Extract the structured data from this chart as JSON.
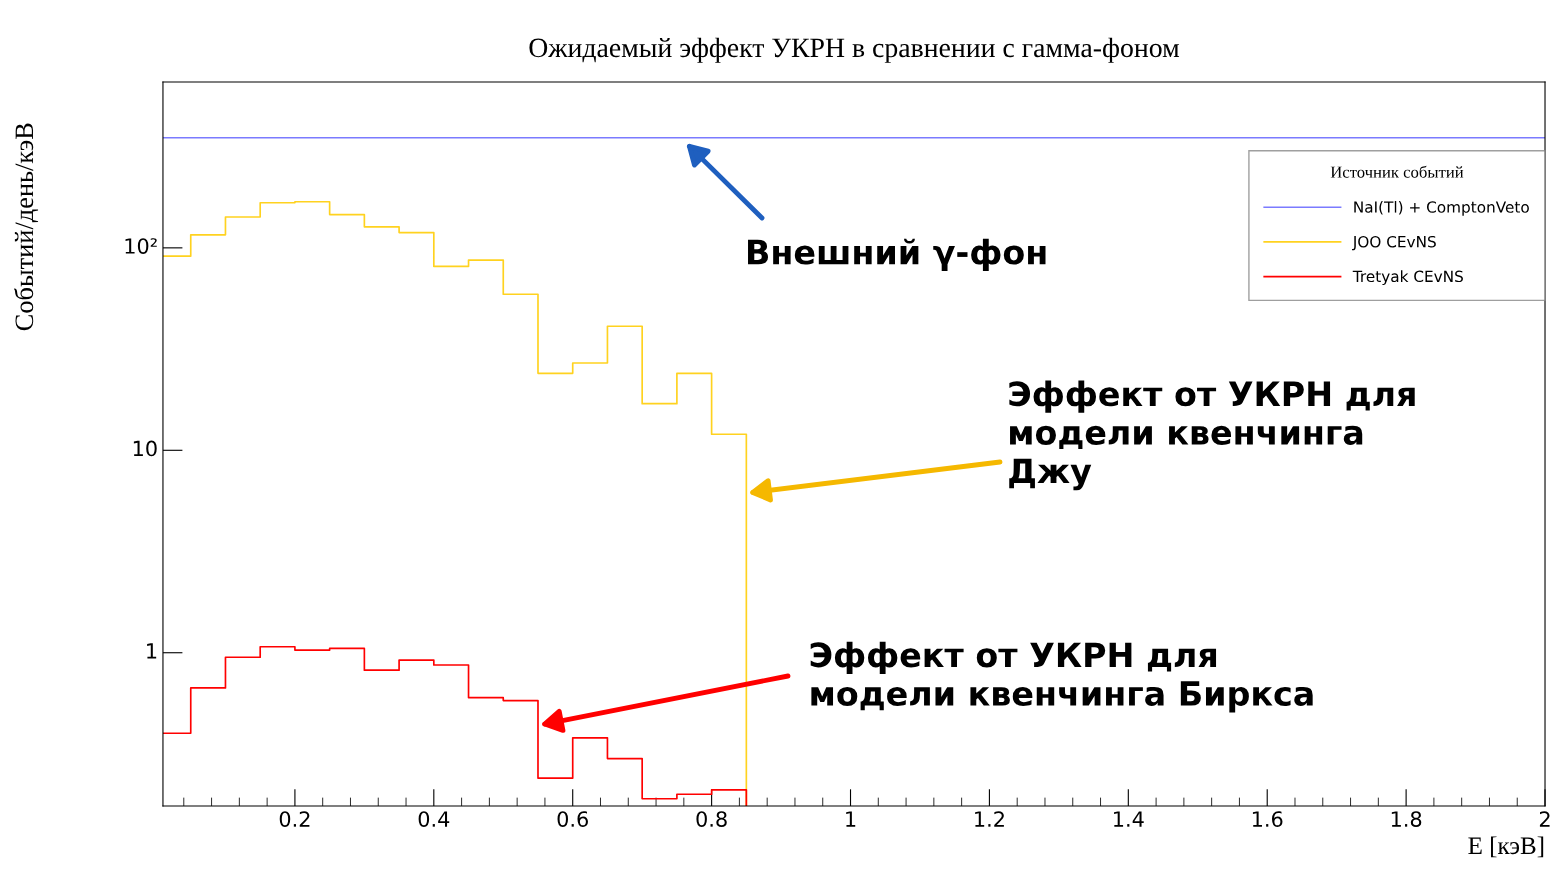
{
  "chart_data": {
    "type": "histogram",
    "title": "Ожидаемый эффект УКРН в сравнении с гамма-фоном",
    "xlabel": "E [кэВ]",
    "ylabel": "Событий/день/кэВ",
    "legend_title": "Источник событий",
    "bins": [
      0,
      0.05,
      0.1,
      0.15,
      0.2,
      0.25,
      0.3,
      0.35,
      0.4,
      0.45,
      0.5,
      0.55,
      0.6,
      0.65,
      0.7,
      0.75,
      0.8,
      0.85
    ],
    "series": [
      {
        "name": "JOO CEvNS",
        "color": "#ffd21f",
        "values": [
          91,
          116,
          142,
          167,
          169,
          146,
          127,
          119,
          81,
          87,
          59,
          24,
          27,
          41,
          17,
          24,
          12
        ]
      },
      {
        "name": "Tretyak CEvNS",
        "color": "#ff0000",
        "values": [
          0.4,
          0.67,
          0.95,
          1.07,
          1.03,
          1.05,
          0.82,
          0.92,
          0.87,
          0.6,
          0.58,
          0.24,
          0.38,
          0.3,
          0.19,
          0.2,
          0.21
        ]
      },
      {
        "name": "NaI(Tl) + ComptonVeto",
        "type": "line",
        "color": "#7b7bff",
        "x": [
          0.01,
          2
        ],
        "values": [
          350,
          350
        ]
      }
    ],
    "xlim": [
      0.01,
      2
    ],
    "ylim": [
      0.175,
      660
    ],
    "log": "y",
    "xticks": [
      0.2,
      0.4,
      0.6,
      0.8,
      1,
      1.2,
      1.4,
      1.6,
      1.8,
      2
    ],
    "yticks": [
      1,
      10,
      {
        "value": 100,
        "label": "10²"
      }
    ],
    "legend": "top right",
    "grid": false,
    "annotations": [
      "Внешний γ-фон",
      "Эффект от УКРН для\nмодели квенчинга\nДжу",
      "Эффект от УКРН для\nмодели квенчинга Биркса"
    ]
  }
}
